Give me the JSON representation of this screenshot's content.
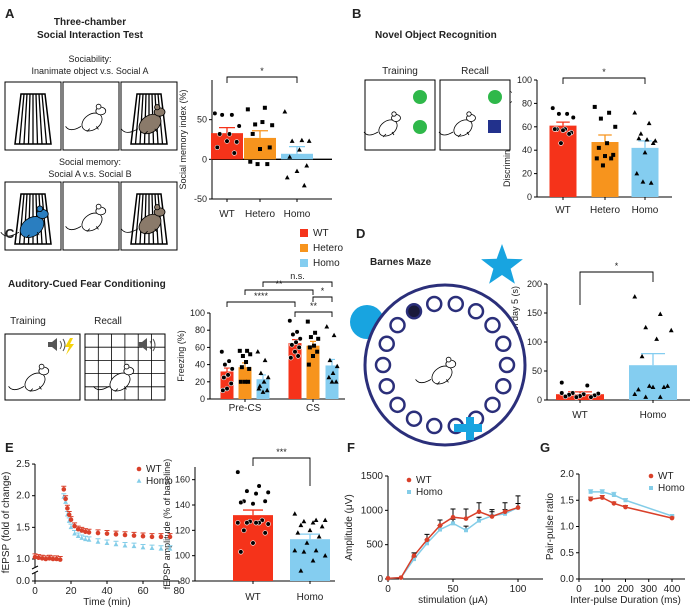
{
  "panels": {
    "A": {
      "letter": "A",
      "title1": "Three-chamber",
      "title2": "Social Interaction Test",
      "sub1a": "Sociability:",
      "sub1b": "Inanimate object v.s. Social A",
      "sub2a": "Social memory:",
      "sub2b": "Social A v.s. Social B"
    },
    "B": {
      "letter": "B",
      "title": "Novel Object Recognition",
      "training": "Training",
      "recall": "Recall"
    },
    "C": {
      "letter": "C",
      "title": "Auditory-Cued Fear Conditioning",
      "training": "Training",
      "recall": "Recall"
    },
    "D": {
      "letter": "D",
      "title": "Barnes Maze"
    },
    "E": {
      "letter": "E"
    },
    "F": {
      "letter": "F"
    },
    "G": {
      "letter": "G"
    }
  },
  "colors": {
    "WT": "#f5331a",
    "Hetero": "#f7941d",
    "Homo": "#84cdf0",
    "WT_line": "#d9402a",
    "Homo_line": "#84cde8",
    "maze": "#2b2f7a",
    "cue_blue": "#18a4e0",
    "object_green": "#2fb84a",
    "object_navy": "#22318c",
    "mouse_blue": "#2a7ec0",
    "mouse_brown": "#8a7a6a",
    "lightning": "#f5d20a"
  },
  "chart_data": [
    {
      "type": "bar",
      "panel": "A",
      "categories": [
        "WT",
        "Hetero",
        "Homo"
      ],
      "values": [
        33,
        27,
        7
      ],
      "errors": [
        7,
        9,
        9
      ],
      "points": [
        [
          58,
          56,
          56,
          42,
          32,
          32,
          22,
          23,
          15,
          8
        ],
        [
          63,
          65,
          44,
          43,
          47,
          32,
          15,
          13,
          -3,
          -6,
          -6
        ],
        [
          60,
          24,
          23,
          23,
          12,
          3,
          -8,
          -15,
          -23,
          -33
        ]
      ],
      "ylabel": "Social memory index (%)",
      "ylim": [
        -50,
        100
      ],
      "yticks": [
        "-50",
        "0",
        "50"
      ],
      "significance": [
        {
          "from": 0,
          "to": 2,
          "label": "*"
        }
      ]
    },
    {
      "type": "bar",
      "panel": "B",
      "categories": [
        "WT",
        "Hetero",
        "Homo"
      ],
      "values": [
        61,
        47,
        42
      ],
      "errors": [
        3,
        6,
        6
      ],
      "points": [
        [
          76,
          71,
          71,
          68,
          58,
          58,
          55,
          57,
          58,
          54,
          46
        ],
        [
          77,
          72,
          67,
          60,
          46,
          42,
          36,
          35,
          33,
          33,
          27
        ],
        [
          72,
          63,
          54,
          48,
          49,
          50,
          46,
          38,
          20,
          12,
          13
        ]
      ],
      "ylabel": "Discrimination index (%)",
      "ylim": [
        0,
        100
      ],
      "yticks": [
        "0",
        "20",
        "40",
        "60",
        "80",
        "100"
      ],
      "significance": [
        {
          "from": 0,
          "to": 2,
          "label": "*"
        }
      ]
    },
    {
      "type": "bar",
      "panel": "C",
      "categories": [
        "Pre-CS",
        "CS"
      ],
      "series": [
        {
          "name": "WT",
          "values": [
            32,
            65
          ],
          "errors": [
            4,
            4
          ],
          "points": [
            [
              55,
              44,
              40,
              35,
              28,
              25,
              18,
              12,
              10
            ],
            [
              91,
              78,
              75,
              70,
              66,
              63,
              60,
              55,
              48,
              50
            ]
          ]
        },
        {
          "name": "Hetero",
          "values": [
            37,
            62
          ],
          "errors": [
            5,
            5
          ],
          "points": [
            [
              56,
              56,
              50,
              52,
              43,
              37,
              35,
              20,
              20,
              20
            ],
            [
              90,
              77,
              72,
              70,
              62,
              60,
              55,
              50,
              40
            ]
          ]
        },
        {
          "name": "Homo",
          "values": [
            23,
            39
          ],
          "errors": [
            5,
            7
          ],
          "points": [
            [
              55,
              45,
              30,
              25,
              20,
              15,
              10,
              8,
              12
            ],
            [
              84,
              74,
              45,
              38,
              30,
              25,
              20,
              20
            ]
          ]
        }
      ],
      "ylabel": "Freezing (%)",
      "ylim": [
        0,
        100
      ],
      "yticks": [
        "0",
        "20",
        "40",
        "60",
        "80",
        "100"
      ],
      "legend": "top-right",
      "significance": [
        {
          "from": [
            0,
            0
          ],
          "to": [
            1,
            0
          ],
          "label": "****"
        },
        {
          "from": [
            0,
            1
          ],
          "to": [
            1,
            1
          ],
          "label": "**"
        },
        {
          "from": [
            0,
            2
          ],
          "to": [
            1,
            2
          ],
          "label": "n.s."
        },
        {
          "from": [
            1,
            1
          ],
          "to": [
            1,
            2
          ],
          "label": "*"
        },
        {
          "from": [
            1,
            0
          ],
          "to": [
            1,
            2
          ],
          "label": "**"
        }
      ]
    },
    {
      "type": "bar",
      "panel": "D",
      "categories": [
        "WT",
        "Homo"
      ],
      "values": [
        10,
        60
      ],
      "errors": [
        4,
        20
      ],
      "points": [
        [
          30,
          25,
          12,
          11,
          10,
          9,
          8,
          7,
          6,
          5,
          5,
          12
        ],
        [
          178,
          148,
          125,
          120,
          105,
          75,
          24,
          22,
          18,
          22,
          24,
          10,
          5,
          5
        ]
      ],
      "ylabel": "Primary latency on day 5 (s)",
      "ylim": [
        0,
        200
      ],
      "yticks": [
        "0",
        "50",
        "100",
        "150",
        "200"
      ],
      "significance": [
        {
          "from": 0,
          "to": 1,
          "label": "*"
        }
      ]
    },
    {
      "type": "line",
      "panel": "E",
      "xlabel": "Time (min)",
      "ylabel": "fEPSP (fold of change)",
      "xlim": [
        0,
        80
      ],
      "xticks": [
        "0",
        "20",
        "40",
        "60",
        "80"
      ],
      "yticks": [
        "0.0",
        "1.0",
        "1.5",
        "2.0",
        "2.5"
      ],
      "y_axis_break": true,
      "legend": "top-right",
      "series": [
        {
          "name": "WT",
          "points": [
            [
              0,
              1.03
            ],
            [
              2,
              1.02
            ],
            [
              4,
              1.01
            ],
            [
              6,
              1.0
            ],
            [
              8,
              1.01
            ],
            [
              10,
              1.0
            ],
            [
              12,
              1.0
            ],
            [
              14,
              0.99
            ],
            [
              16,
              2.1
            ],
            [
              17,
              1.95
            ],
            [
              18,
              1.8
            ],
            [
              19,
              1.7
            ],
            [
              20,
              1.62
            ],
            [
              22,
              1.52
            ],
            [
              24,
              1.47
            ],
            [
              26,
              1.45
            ],
            [
              28,
              1.43
            ],
            [
              30,
              1.42
            ],
            [
              35,
              1.41
            ],
            [
              40,
              1.4
            ],
            [
              45,
              1.39
            ],
            [
              50,
              1.38
            ],
            [
              55,
              1.37
            ],
            [
              60,
              1.36
            ],
            [
              65,
              1.35
            ],
            [
              70,
              1.35
            ],
            [
              75,
              1.35
            ]
          ]
        },
        {
          "name": "Homo",
          "points": [
            [
              16,
              1.98
            ],
            [
              17,
              1.9
            ],
            [
              18,
              1.7
            ],
            [
              19,
              1.6
            ],
            [
              20,
              1.5
            ],
            [
              22,
              1.4
            ],
            [
              24,
              1.36
            ],
            [
              26,
              1.33
            ],
            [
              28,
              1.31
            ],
            [
              30,
              1.3
            ],
            [
              35,
              1.27
            ],
            [
              40,
              1.25
            ],
            [
              45,
              1.23
            ],
            [
              50,
              1.21
            ],
            [
              55,
              1.2
            ],
            [
              60,
              1.18
            ],
            [
              65,
              1.17
            ],
            [
              70,
              1.16
            ],
            [
              75,
              1.16
            ]
          ]
        }
      ]
    },
    {
      "type": "bar",
      "panel": "E",
      "categories": [
        "WT",
        "Homo"
      ],
      "values": [
        132,
        113
      ],
      "errors": [
        4,
        4
      ],
      "points": [
        [
          166,
          155,
          151,
          150,
          149,
          143,
          143,
          141,
          142,
          128,
          127,
          126,
          126,
          126,
          125,
          126,
          120,
          118,
          110,
          103
        ],
        [
          133,
          128,
          127,
          128,
          126,
          124,
          123,
          120,
          118,
          115,
          110,
          104,
          104,
          103,
          100,
          96,
          88
        ]
      ],
      "ylabel": "fEPSP amplitude (% of baseline)",
      "ylim": [
        80,
        170
      ],
      "yticks": [
        "80",
        "100",
        "120",
        "140",
        "160"
      ],
      "significance": [
        {
          "from": 0,
          "to": 1,
          "label": "***"
        }
      ]
    },
    {
      "type": "line",
      "panel": "F",
      "xlabel": "stimulation (μA)",
      "ylabel": "Amplitude (μV)",
      "xlim": [
        0,
        120
      ],
      "ylim": [
        0,
        1500
      ],
      "xticks": [
        "0",
        "50",
        "100"
      ],
      "yticks": [
        "0",
        "500",
        "1000",
        "1500"
      ],
      "legend": "top-left",
      "series": [
        {
          "name": "WT",
          "points": [
            [
              0,
              10,
              0
            ],
            [
              10,
              20,
              0
            ],
            [
              20,
              340,
              40
            ],
            [
              30,
              570,
              80
            ],
            [
              40,
              780,
              80
            ],
            [
              50,
              900,
              120
            ],
            [
              60,
              880,
              140
            ],
            [
              70,
              980,
              130
            ],
            [
              80,
              910,
              100
            ],
            [
              90,
              980,
              130
            ],
            [
              100,
              1040,
              170
            ]
          ]
        },
        {
          "name": "Homo",
          "points": [
            [
              0,
              10,
              0
            ],
            [
              10,
              20,
              0
            ],
            [
              20,
              290,
              30
            ],
            [
              30,
              520,
              50
            ],
            [
              40,
              720,
              60
            ],
            [
              50,
              810,
              60
            ],
            [
              60,
              710,
              60
            ],
            [
              70,
              850,
              50
            ],
            [
              80,
              920,
              60
            ],
            [
              90,
              950,
              60
            ],
            [
              100,
              1040,
              60
            ]
          ]
        }
      ]
    },
    {
      "type": "line",
      "panel": "G",
      "xlabel": "Inter-pulse Duration (ms)",
      "ylabel": "Pair-pulse ratio",
      "xlim": [
        0,
        450
      ],
      "ylim": [
        0,
        2
      ],
      "xticks": [
        "0",
        "100",
        "200",
        "300",
        "400"
      ],
      "yticks": [
        "0.0",
        "0.5",
        "1.0",
        "1.5",
        "2.0"
      ],
      "legend": "top-right",
      "series": [
        {
          "name": "WT",
          "points": [
            [
              50,
              1.52,
              0.04
            ],
            [
              100,
              1.55,
              0.04
            ],
            [
              150,
              1.44,
              0.03
            ],
            [
              200,
              1.37,
              0.03
            ],
            [
              400,
              1.16,
              0.02
            ]
          ]
        },
        {
          "name": "Homo",
          "points": [
            [
              50,
              1.66,
              0.04
            ],
            [
              100,
              1.66,
              0.04
            ],
            [
              150,
              1.6,
              0.05
            ],
            [
              200,
              1.5,
              0.03
            ],
            [
              400,
              1.2,
              0.02
            ]
          ]
        }
      ]
    }
  ]
}
